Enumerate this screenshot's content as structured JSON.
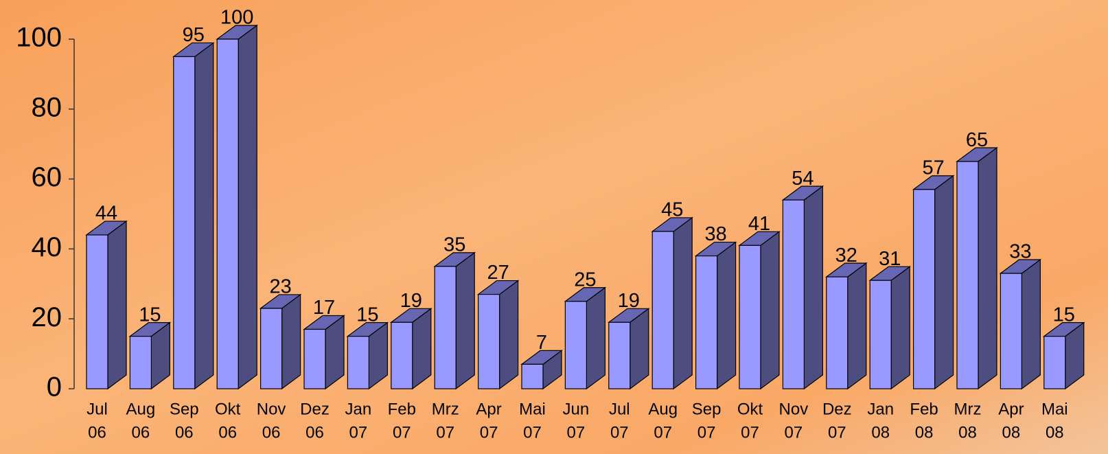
{
  "chart_data": {
    "type": "bar3d",
    "categories": [
      [
        "Jul",
        "06"
      ],
      [
        "Aug",
        "06"
      ],
      [
        "Sep",
        "06"
      ],
      [
        "Okt",
        "06"
      ],
      [
        "Nov",
        "06"
      ],
      [
        "Dez",
        "06"
      ],
      [
        "Jan",
        "07"
      ],
      [
        "Feb",
        "07"
      ],
      [
        "Mrz",
        "07"
      ],
      [
        "Apr",
        "07"
      ],
      [
        "Mai",
        "07"
      ],
      [
        "Jun",
        "07"
      ],
      [
        "Jul",
        "07"
      ],
      [
        "Aug",
        "07"
      ],
      [
        "Sep",
        "07"
      ],
      [
        "Okt",
        "07"
      ],
      [
        "Nov",
        "07"
      ],
      [
        "Dez",
        "07"
      ],
      [
        "Jan",
        "08"
      ],
      [
        "Feb",
        "08"
      ],
      [
        "Mrz",
        "08"
      ],
      [
        "Apr",
        "08"
      ],
      [
        "Mai",
        "08"
      ]
    ],
    "values": [
      44,
      15,
      95,
      100,
      23,
      17,
      15,
      19,
      35,
      27,
      7,
      25,
      19,
      45,
      38,
      41,
      54,
      32,
      31,
      57,
      65,
      33,
      15
    ],
    "color": "#9999ff",
    "side_color": "#4d4d80",
    "top_color": "#6666b3",
    "ylim": [
      0,
      100
    ],
    "yticks": [
      0,
      20,
      40,
      60,
      80,
      100
    ],
    "grid": false
  }
}
